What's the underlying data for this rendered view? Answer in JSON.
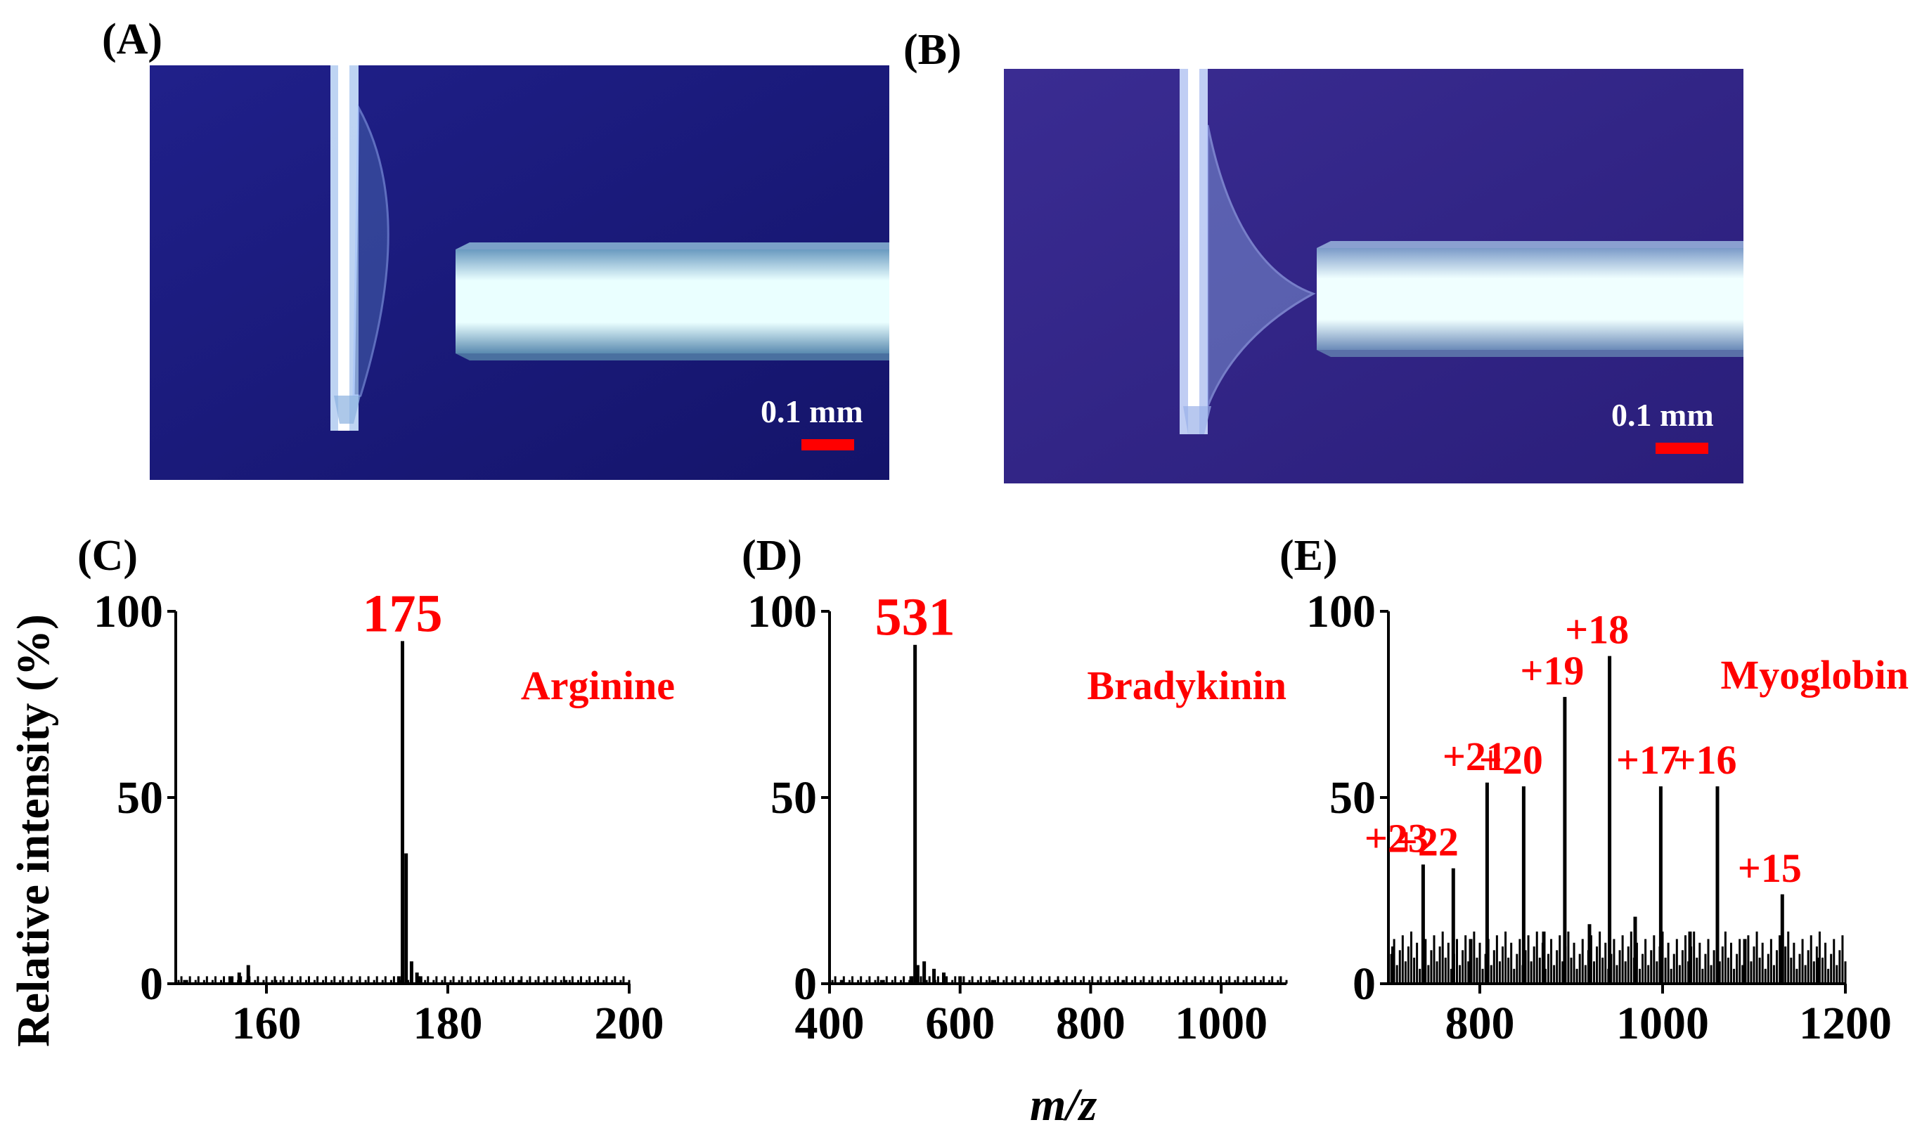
{
  "figure": {
    "panel_labels": [
      "(A)",
      "(B)",
      "(C)",
      "(D)",
      "(E)"
    ],
    "shared_ylabel": "Relative intensity (%)",
    "shared_xlabel": "m/z",
    "photos": [
      {
        "scale_label": "0.1 mm",
        "background": "#1a1a7a"
      },
      {
        "scale_label": "0.1 mm",
        "background": "#3a2a8a"
      }
    ],
    "colors": {
      "annotation": "#ff0000",
      "trace": "#000000",
      "scale_bar": "#ff0000"
    }
  },
  "chart_data": [
    {
      "type": "line",
      "panel": "(C)",
      "xlim": [
        150,
        200
      ],
      "ylim": [
        0,
        100
      ],
      "xticks": [
        160,
        180,
        200
      ],
      "yticks": [
        0,
        50,
        100
      ],
      "annotation": "Arginine",
      "peak_labels": [
        {
          "x": 175,
          "y": 92,
          "text": "175"
        }
      ],
      "peaks": [
        [
          151,
          1
        ],
        [
          156,
          2
        ],
        [
          157,
          3
        ],
        [
          158,
          5
        ],
        [
          161,
          1
        ],
        [
          174.6,
          2
        ],
        [
          175,
          92
        ],
        [
          175.4,
          35
        ],
        [
          176,
          6
        ],
        [
          176.6,
          3
        ],
        [
          177,
          2
        ],
        [
          188,
          1
        ],
        [
          193,
          1
        ]
      ]
    },
    {
      "type": "line",
      "panel": "(D)",
      "xlim": [
        400,
        1100
      ],
      "ylim": [
        0,
        100
      ],
      "xticks": [
        400,
        600,
        800,
        1000
      ],
      "yticks": [
        0,
        50,
        100
      ],
      "annotation": "Bradykinin",
      "peak_labels": [
        {
          "x": 531,
          "y": 91,
          "text": "531"
        }
      ],
      "peaks": [
        [
          420,
          1
        ],
        [
          480,
          1
        ],
        [
          525,
          2
        ],
        [
          531,
          91
        ],
        [
          535,
          5
        ],
        [
          545,
          6
        ],
        [
          560,
          4
        ],
        [
          575,
          3
        ],
        [
          600,
          2
        ],
        [
          650,
          1
        ],
        [
          750,
          1
        ],
        [
          850,
          1
        ]
      ]
    },
    {
      "type": "line",
      "panel": "(E)",
      "xlim": [
        700,
        1200
      ],
      "ylim": [
        0,
        100
      ],
      "xticks": [
        800,
        1000,
        1200
      ],
      "yticks": [
        0,
        50,
        100
      ],
      "annotation": "Myoglobin",
      "peak_labels": [
        {
          "x": 738,
          "y": 32,
          "text": "+23"
        },
        {
          "x": 771,
          "y": 31,
          "text": "+22"
        },
        {
          "x": 808,
          "y": 54,
          "text": "+21"
        },
        {
          "x": 848,
          "y": 53,
          "text": "+20"
        },
        {
          "x": 893,
          "y": 77,
          "text": "+19"
        },
        {
          "x": 942,
          "y": 88,
          "text": "+18"
        },
        {
          "x": 998,
          "y": 53,
          "text": "+17"
        },
        {
          "x": 1060,
          "y": 53,
          "text": "+16"
        },
        {
          "x": 1131,
          "y": 24,
          "text": "+15"
        }
      ],
      "peaks": [
        [
          705,
          10
        ],
        [
          738,
          32
        ],
        [
          771,
          31
        ],
        [
          790,
          12
        ],
        [
          808,
          54
        ],
        [
          848,
          53
        ],
        [
          870,
          14
        ],
        [
          893,
          77
        ],
        [
          920,
          16
        ],
        [
          942,
          88
        ],
        [
          970,
          18
        ],
        [
          998,
          53
        ],
        [
          1030,
          14
        ],
        [
          1060,
          53
        ],
        [
          1090,
          12
        ],
        [
          1131,
          24
        ],
        [
          1170,
          7
        ]
      ]
    }
  ]
}
